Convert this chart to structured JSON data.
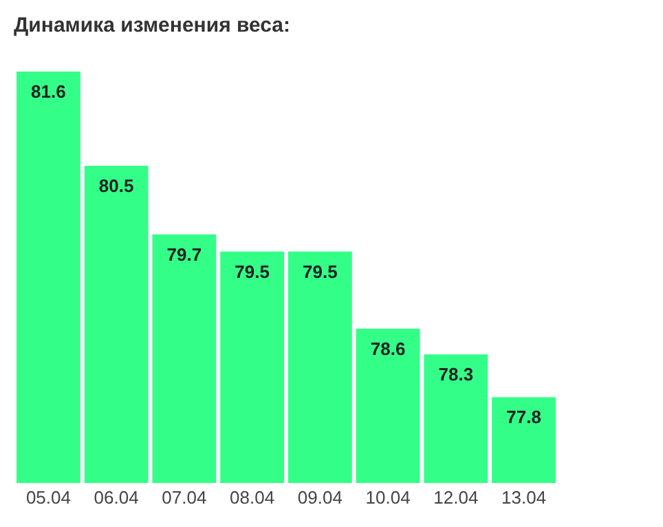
{
  "chart_data": {
    "type": "bar",
    "title": "Динамика изменения веса:",
    "categories": [
      "05.04",
      "06.04",
      "07.04",
      "08.04",
      "09.04",
      "10.04",
      "12.04",
      "13.04"
    ],
    "values": [
      81.6,
      80.5,
      79.7,
      79.5,
      79.5,
      78.6,
      78.3,
      77.8
    ],
    "color": "#33ff88",
    "ylim": [
      76.8,
      81.6
    ],
    "data_labels": true
  }
}
